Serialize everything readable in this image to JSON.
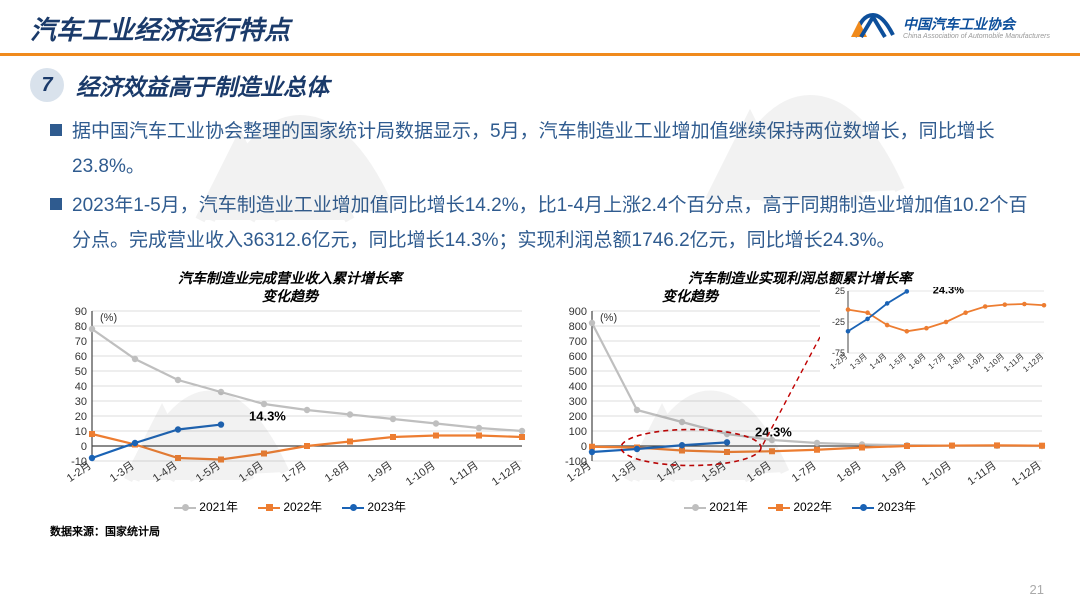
{
  "header": {
    "title": "汽车工业经济运行特点",
    "title_color": "#1a3a6a",
    "underline_color": "#f08a1c",
    "logo_text": "中国汽车工业协会",
    "logo_sub": "China Association of Automobile Manufacturers",
    "logo_color": "#0d4f9b"
  },
  "subtitle": {
    "number": "7",
    "circle_bg": "#d9e2ec",
    "circle_text_color": "#1a3a6a",
    "text": "经济效益高于制造业总体",
    "text_color": "#1a3a6a"
  },
  "bullets": {
    "sq_color": "#2f5b8f",
    "text_color": "#2f5b8f",
    "items": [
      "据中国汽车工业协会整理的国家统计局数据显示，5月，汽车制造业工业增加值继续保持两位数增长，同比增长23.8%。",
      "2023年1-5月，汽车制造业工业增加值同比增长14.2%，比1-4月上涨2.4个百分点，高于同期制造业增加值10.2个百分点。完成营业收入36312.6亿元，同比增长14.3%；实现利润总额1746.2亿元，同比增长24.3%。"
    ]
  },
  "chart_left": {
    "title_l1": "汽车制造业完成营业收入累计增长率",
    "title_l2": "变化趋势",
    "ylabel_pct": "(%)",
    "categories": [
      "1-2月",
      "1-3月",
      "1-4月",
      "1-5月",
      "1-6月",
      "1-7月",
      "1-8月",
      "1-9月",
      "1-10月",
      "1-11月",
      "1-12月"
    ],
    "ylim": [
      -10,
      90
    ],
    "ytick_step": 10,
    "s2021": {
      "name": "2021年",
      "color": "#bfbfbf",
      "vals": [
        78,
        58,
        44,
        36,
        28,
        24,
        21,
        18,
        15,
        12,
        10
      ],
      "marker": "circle"
    },
    "s2022": {
      "name": "2022年",
      "color": "#ed7d31",
      "vals": [
        8,
        1,
        -8,
        -9,
        -5,
        0,
        3,
        6,
        7,
        7,
        6
      ],
      "marker": "square"
    },
    "s2023": {
      "name": "2023年",
      "color": "#1a63b5",
      "vals": [
        -8,
        2,
        11,
        14.3,
        null,
        null,
        null,
        null,
        null,
        null,
        null
      ],
      "marker": "circle"
    },
    "callout": "14.3%",
    "grid_color": "#bbbbbb",
    "axis_color": "#444444",
    "tick_font": 11
  },
  "chart_right": {
    "title_l1": "汽车制造业实现利润总额累计增长率",
    "title_l2": "变化趋势",
    "ylabel_pct": "(%)",
    "categories": [
      "1-2月",
      "1-3月",
      "1-4月",
      "1-5月",
      "1-6月",
      "1-7月",
      "1-8月",
      "1-9月",
      "1-10月",
      "1-11月",
      "1-12月"
    ],
    "ylim": [
      -100,
      900
    ],
    "ytick_step": 100,
    "s2021": {
      "name": "2021年",
      "color": "#bfbfbf",
      "vals": [
        820,
        240,
        160,
        80,
        40,
        20,
        10,
        5,
        2,
        1,
        0
      ],
      "marker": "circle"
    },
    "s2022": {
      "name": "2022年",
      "color": "#ed7d31",
      "vals": [
        -5,
        -10,
        -30,
        -40,
        -35,
        -25,
        -10,
        0,
        3,
        4,
        2
      ],
      "marker": "square"
    },
    "s2023": {
      "name": "2023年",
      "color": "#1a63b5",
      "vals": [
        -40,
        -20,
        5,
        24.3,
        null,
        null,
        null,
        null,
        null,
        null,
        null
      ],
      "marker": "circle"
    },
    "callout": "24.3%",
    "ellipse_color": "#c00000",
    "grid_color": "#bbbbbb",
    "axis_color": "#444444",
    "tick_font": 11,
    "inset": {
      "categories": [
        "1-2月",
        "1-3月",
        "1-4月",
        "1-5月",
        "1-6月",
        "1-7月",
        "1-8月",
        "1-9月",
        "1-10月",
        "1-11月",
        "1-12月"
      ],
      "ylim": [
        -75,
        25
      ],
      "yticks": [
        -75,
        -25,
        25
      ],
      "s2022": {
        "color": "#ed7d31",
        "vals": [
          -5,
          -10,
          -30,
          -40,
          -35,
          -25,
          -10,
          0,
          3,
          4,
          2
        ]
      },
      "s2023": {
        "color": "#1a63b5",
        "vals": [
          -40,
          -20,
          5,
          24.3,
          null,
          null,
          null,
          null,
          null,
          null,
          null
        ]
      },
      "callout": "24.3%"
    }
  },
  "footnote": "数据来源：国家统计局",
  "page_number": "21"
}
